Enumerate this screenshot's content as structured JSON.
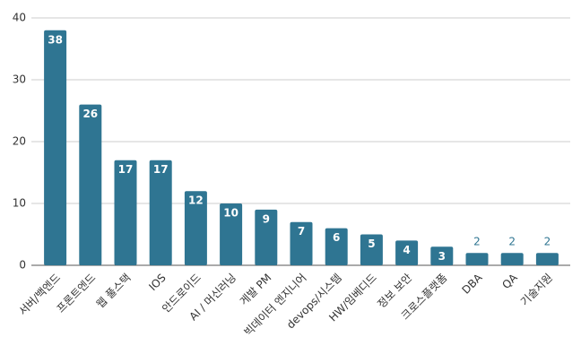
{
  "chart_data": {
    "type": "bar",
    "categories": [
      "서버/백엔드",
      "프론트엔드",
      "웹 풀스택",
      "IOS",
      "안드로이드",
      "AI / 머신러닝",
      "게발 PM",
      "빅데이터 엔지니어",
      "devops/시스템",
      "HW/임베디드",
      "정보 보안",
      "크로스플랫폼",
      "DBA",
      "QA",
      "기술지원"
    ],
    "values": [
      38,
      26,
      17,
      17,
      12,
      10,
      9,
      7,
      6,
      5,
      4,
      3,
      2,
      2,
      2
    ],
    "color": "#2f7592",
    "ylim": [
      0,
      40
    ],
    "yticks": [
      0,
      10,
      20,
      30,
      40
    ],
    "grid": true
  }
}
